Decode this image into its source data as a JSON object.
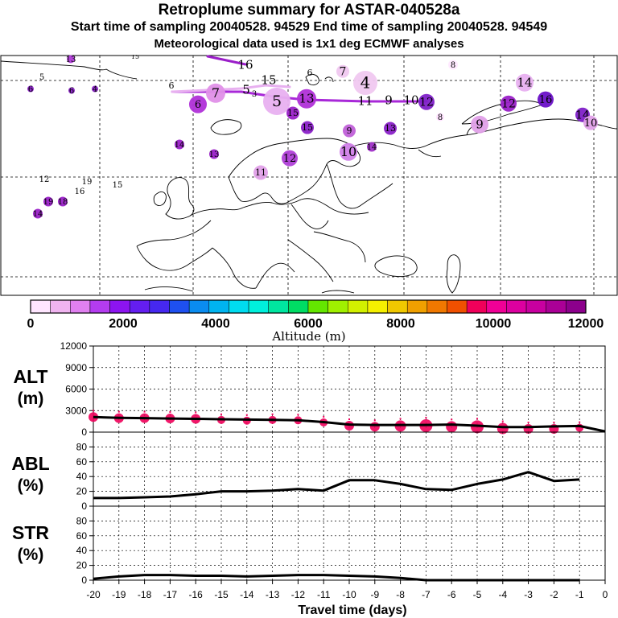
{
  "header": {
    "title": "Retroplume summary for ASTAR-040528a",
    "sampling": "Start time of sampling 20040528. 94529     End time of sampling 20040528. 94549",
    "met": "Meteorological data used is 1x1 deg ECMWF analyses"
  },
  "map": {
    "labels": [
      {
        "t": "13",
        "c": "#b03cd8"
      },
      {
        "t": "15",
        "c": "#c060d8"
      },
      {
        "t": "16",
        "c": "#9a1ec8"
      },
      {
        "t": "6",
        "c": "#ffffff"
      },
      {
        "t": "7",
        "c": "#f0c8f0"
      },
      {
        "t": "8",
        "c": "#ffe8ff"
      },
      {
        "t": "4",
        "c": "#f0c8f0"
      },
      {
        "t": "14",
        "c": "#e8b0f0"
      },
      {
        "t": "15",
        "c": "#e8b0f0"
      },
      {
        "t": "6",
        "c": "#e8b0f0"
      },
      {
        "t": "7",
        "c": "#e090e8"
      },
      {
        "t": "5",
        "c": "#e8b0f0"
      },
      {
        "t": "6",
        "c": "#b030d8"
      },
      {
        "t": "5",
        "c": "#e8b0f0"
      },
      {
        "t": "3",
        "c": "#e8b0f0"
      },
      {
        "t": "13",
        "c": "#b030d8"
      },
      {
        "t": "11",
        "c": "#ffffff"
      },
      {
        "t": "9",
        "c": "#ffffff"
      },
      {
        "t": "10",
        "c": "#ffffff"
      },
      {
        "t": "12",
        "c": "#8020c8"
      },
      {
        "t": "12",
        "c": "#9a20c8"
      },
      {
        "t": "16",
        "c": "#6a10c8"
      },
      {
        "t": "14",
        "c": "#8020c8"
      },
      {
        "t": "10",
        "c": "#e0a0e8"
      },
      {
        "t": "9",
        "c": "#e0a0e8"
      },
      {
        "t": "8",
        "c": "#ffe0ff"
      },
      {
        "t": "15",
        "c": "#9a20c8"
      },
      {
        "t": "15",
        "c": "#8a20c8"
      },
      {
        "t": "9",
        "c": "#c060d8"
      },
      {
        "t": "13",
        "c": "#8a20c8"
      },
      {
        "t": "10",
        "c": "#d080e8"
      },
      {
        "t": "14",
        "c": "#a030c8"
      },
      {
        "t": "12",
        "c": "#b040d8"
      },
      {
        "t": "14",
        "c": "#9a20c8"
      },
      {
        "t": "13",
        "c": "#9a20c8"
      },
      {
        "t": "11",
        "c": "#e0a0e8"
      },
      {
        "t": "12",
        "c": "#9a20c8"
      },
      {
        "t": "19",
        "c": "#ffffff"
      },
      {
        "t": "16",
        "c": "#ffffff"
      },
      {
        "t": "15",
        "c": "#ffffff"
      },
      {
        "t": "19",
        "c": "#9a20c8"
      },
      {
        "t": "18",
        "c": "#9a20c8"
      },
      {
        "t": "14",
        "c": "#9a20c8"
      },
      {
        "t": "5",
        "c": "#8a20c8"
      },
      {
        "t": "6",
        "c": "#8a20c8"
      },
      {
        "t": "6",
        "c": "#8a20c8"
      },
      {
        "t": "4",
        "c": "#8a20c8"
      }
    ]
  },
  "colorbar": {
    "colors": [
      "#ffe6ff",
      "#f0b4f0",
      "#e080f0",
      "#b43cf0",
      "#8c14f0",
      "#641ef0",
      "#4628f0",
      "#1e50f0",
      "#0a8cf0",
      "#00b4f0",
      "#00dcf0",
      "#00f0dc",
      "#00e6a0",
      "#00dc64",
      "#64e600",
      "#a0f000",
      "#d2f000",
      "#f5f000",
      "#f0c800",
      "#f0a000",
      "#f07800",
      "#f05000",
      "#f0005a",
      "#f00096",
      "#dc00a0",
      "#c800a0",
      "#aa0096",
      "#8c008c"
    ],
    "ticks": [
      "0",
      "2000",
      "4000",
      "6000",
      "8000",
      "10000",
      "12000"
    ],
    "label": "Altitude (m)"
  },
  "axes": {
    "alt_title": [
      "ALT",
      "(m)"
    ],
    "abl_title": [
      "ABL",
      "(%)"
    ],
    "str_title": [
      "STR",
      "(%)"
    ],
    "xlabel": "Travel time (days)"
  },
  "chart_data": [
    {
      "type": "line",
      "name": "ALT",
      "ylabel": "ALT (m)",
      "xlim": [
        -20,
        0
      ],
      "ylim": [
        0,
        12000
      ],
      "yticks": [
        "0",
        "3000",
        "6000",
        "9000",
        "12000"
      ],
      "x": [
        -20,
        -19,
        -18,
        -17,
        -16,
        -15,
        -14,
        -13,
        -12,
        -11,
        -10,
        -9,
        -8,
        -7,
        -6,
        -5,
        -4,
        -3,
        -2,
        -1,
        0
      ],
      "y": [
        2100,
        2000,
        1950,
        1900,
        1850,
        1800,
        1750,
        1700,
        1650,
        1400,
        1050,
        1000,
        1000,
        1000,
        1050,
        900,
        700,
        700,
        800,
        850,
        100
      ],
      "markers": [
        {
          "x": -20,
          "y": 2100,
          "r": 6
        },
        {
          "x": -19,
          "y": 1950,
          "r": 6
        },
        {
          "x": -18,
          "y": 1950,
          "r": 6
        },
        {
          "x": -17,
          "y": 1900,
          "r": 6
        },
        {
          "x": -16,
          "y": 1850,
          "r": 6
        },
        {
          "x": -15,
          "y": 1700,
          "r": 5
        },
        {
          "x": -14,
          "y": 1600,
          "r": 5
        },
        {
          "x": -13,
          "y": 1700,
          "r": 5
        },
        {
          "x": -12,
          "y": 1650,
          "r": 5
        },
        {
          "x": -11,
          "y": 1350,
          "r": 5
        },
        {
          "x": -10,
          "y": 900,
          "r": 6
        },
        {
          "x": -9,
          "y": 750,
          "r": 6
        },
        {
          "x": -8,
          "y": 850,
          "r": 7
        },
        {
          "x": -7,
          "y": 900,
          "r": 8
        },
        {
          "x": -6,
          "y": 750,
          "r": 7
        },
        {
          "x": -5,
          "y": 750,
          "r": 8
        },
        {
          "x": -4,
          "y": 500,
          "r": 7
        },
        {
          "x": -3,
          "y": 450,
          "r": 6
        },
        {
          "x": -2,
          "y": 450,
          "r": 6
        },
        {
          "x": -1,
          "y": 600,
          "r": 5
        }
      ]
    },
    {
      "type": "line",
      "name": "ABL",
      "ylabel": "ABL (%)",
      "xlim": [
        -20,
        0
      ],
      "ylim": [
        0,
        100
      ],
      "yticks": [
        "0",
        "20",
        "40",
        "60",
        "80"
      ],
      "x": [
        -20,
        -19,
        -18,
        -17,
        -16,
        -15,
        -14,
        -13,
        -12,
        -11,
        -10,
        -9,
        -8,
        -7,
        -6,
        -5,
        -4,
        -3,
        -2,
        -1
      ],
      "y": [
        11,
        11,
        12,
        13,
        16,
        20,
        20,
        21,
        23,
        21,
        35,
        35,
        30,
        23,
        22,
        30,
        36,
        46,
        34,
        36
      ]
    },
    {
      "type": "line",
      "name": "STR",
      "ylabel": "STR (%)",
      "xlim": [
        -20,
        0
      ],
      "ylim": [
        0,
        100
      ],
      "yticks": [
        "0",
        "20",
        "40",
        "60",
        "80"
      ],
      "x": [
        -20,
        -19,
        -18,
        -17,
        -16,
        -15,
        -14,
        -13,
        -12,
        -11,
        -10,
        -9,
        -8,
        -7,
        -6,
        -5,
        -4,
        -3,
        -2,
        -1
      ],
      "y": [
        2,
        5,
        7,
        7,
        6,
        6,
        5,
        6,
        7,
        7,
        6,
        5,
        3,
        0,
        0,
        0,
        0,
        0,
        0,
        0
      ]
    }
  ],
  "xticks": [
    "-20",
    "-19",
    "-18",
    "-17",
    "-16",
    "-15",
    "-14",
    "-13",
    "-12",
    "-11",
    "-10",
    "-9",
    "-8",
    "-7",
    "-6",
    "-5",
    "-4",
    "-3",
    "-2",
    "-1",
    "0"
  ]
}
